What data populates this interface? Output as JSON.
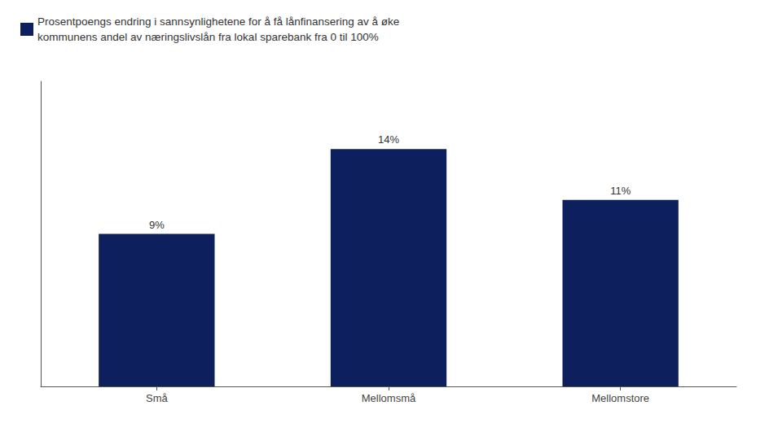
{
  "chart_data": {
    "type": "bar",
    "categories": [
      "Små",
      "Mellomsmå",
      "Mellomstore"
    ],
    "series": [
      {
        "name": "Prosentpoengs endring i sannsynlighetene for å få lånfinansering av å øke\nkommunens andel av næringslivslån fra lokal sparebank fra 0 til 100%",
        "color": "#0d1f5c",
        "values": [
          9,
          14,
          11
        ],
        "value_labels": [
          "9%",
          "14%",
          "11%"
        ]
      }
    ],
    "ylim": [
      0,
      18
    ],
    "grid": false,
    "legend": "upper left",
    "data_labels": true,
    "tick_labels": "x"
  }
}
